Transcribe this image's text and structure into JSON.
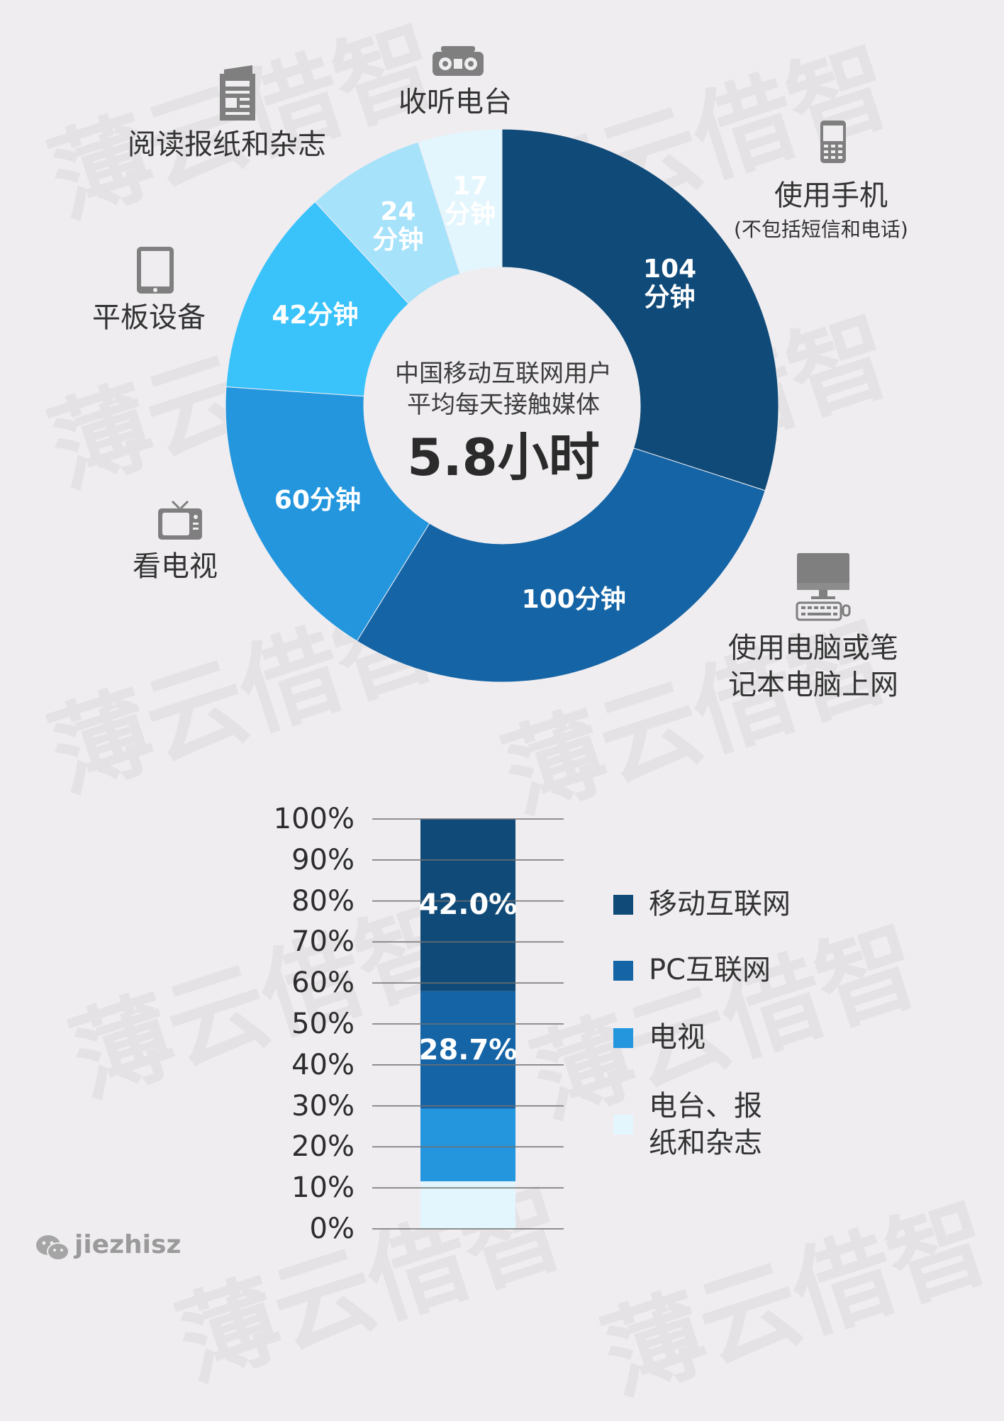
{
  "watermark": "薄云借智",
  "chart_data": [
    {
      "type": "pie",
      "variant": "donut",
      "center": {
        "line1": "中国移动互联网用户",
        "line2": "平均每天接触媒体",
        "value": "5.8小时"
      },
      "slices": [
        {
          "key": "mobile",
          "category": "使用手机",
          "sub": "(不包括短信和电话)",
          "value": 104,
          "label_line1": "104",
          "label_line2": "分钟",
          "color": "#0f4a78",
          "icon": "mobile-phone-icon"
        },
        {
          "key": "pc",
          "category": "使用电脑或笔记本电脑上网",
          "category_line1": "使用电脑或笔",
          "category_line2": "记本电脑上网",
          "value": 100,
          "label_line1": "100分钟",
          "label_line2": "",
          "color": "#1464a6",
          "icon": "desktop-computer-icon"
        },
        {
          "key": "tv",
          "category": "看电视",
          "value": 60,
          "label_line1": "60分钟",
          "label_line2": "",
          "color": "#2396de",
          "icon": "television-icon"
        },
        {
          "key": "tablet",
          "category": "平板设备",
          "value": 42,
          "label_line1": "42分钟",
          "label_line2": "",
          "color": "#3ac2fb",
          "icon": "tablet-icon"
        },
        {
          "key": "newspaper",
          "category": "阅读报纸和杂志",
          "value": 24,
          "label_line1": "24",
          "label_line2": "分钟",
          "color": "#a7e2fb",
          "icon": "newspaper-icon"
        },
        {
          "key": "radio",
          "category": "收听电台",
          "value": 17,
          "label_line1": "17",
          "label_line2": "分钟",
          "color": "#e3f6fd",
          "icon": "radio-icon"
        }
      ]
    },
    {
      "type": "bar",
      "variant": "stacked-100",
      "ylim": [
        0,
        100
      ],
      "yticks": [
        "0%",
        "10%",
        "20%",
        "30%",
        "40%",
        "50%",
        "60%",
        "70%",
        "80%",
        "90%",
        "100%"
      ],
      "segments": [
        {
          "name": "电台、报纸和杂志",
          "name_line1": "电台、报",
          "name_line2": "纸和杂志",
          "value": 11.6,
          "label": "",
          "color": "#e3f6fd"
        },
        {
          "name": "电视",
          "value": 17.7,
          "label": "",
          "color": "#2396de"
        },
        {
          "name": "PC互联网",
          "value": 28.7,
          "label": "28.7%",
          "color": "#1464a6"
        },
        {
          "name": "移动互联网",
          "value": 42.0,
          "label": "42.0%",
          "color": "#0f4a78"
        }
      ]
    }
  ],
  "legend": [
    {
      "label": "移动互联网",
      "color": "#0f4a78"
    },
    {
      "label": "PC互联网",
      "color": "#1464a6"
    },
    {
      "label": "电视",
      "color": "#2396de"
    },
    {
      "label_line1": "电台、报",
      "label_line2": "纸和杂志",
      "color": "#e3f6fd"
    }
  ],
  "brand": {
    "handle": "jiezhisz",
    "icon": "wechat-icon"
  }
}
